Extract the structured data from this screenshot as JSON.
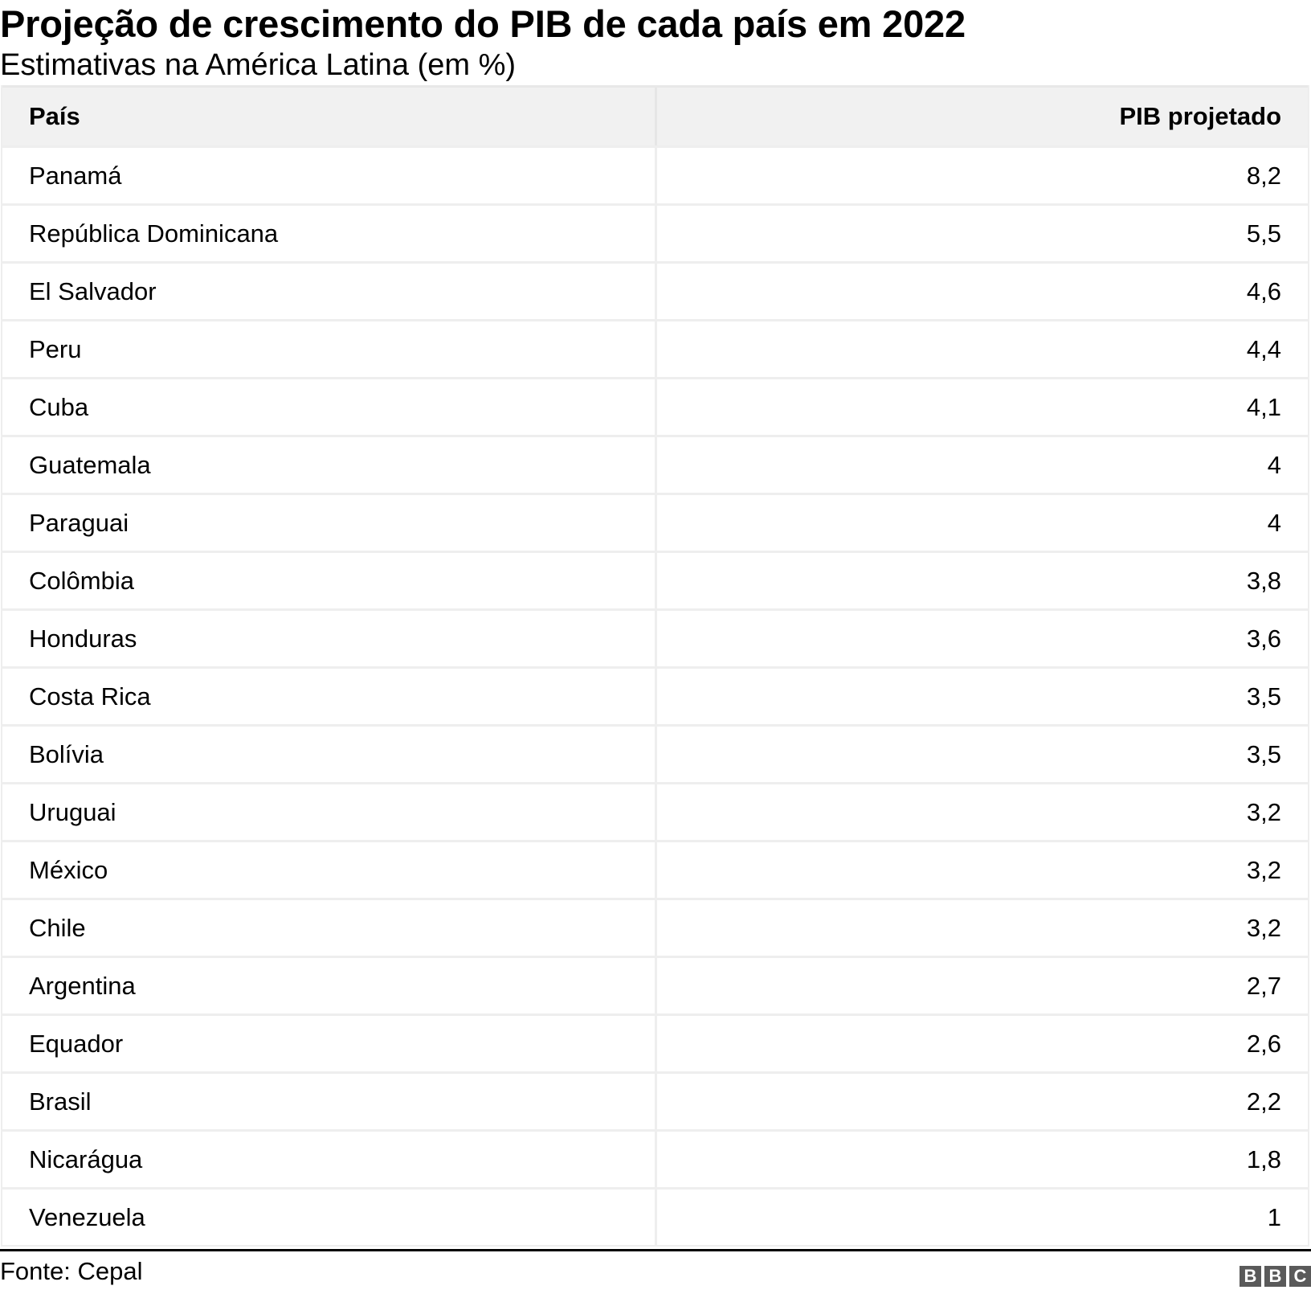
{
  "header": {
    "title": "Projeção de crescimento do PIB de cada país em 2022",
    "subtitle": "Estimativas na América Latina (em %)"
  },
  "table": {
    "columns": [
      "País",
      "PIB projetado"
    ],
    "rows": [
      {
        "country": "Panamá",
        "value": "8,2"
      },
      {
        "country": "República Dominicana",
        "value": "5,5"
      },
      {
        "country": "El Salvador",
        "value": "4,6"
      },
      {
        "country": "Peru",
        "value": "4,4"
      },
      {
        "country": "Cuba",
        "value": "4,1"
      },
      {
        "country": "Guatemala",
        "value": "4"
      },
      {
        "country": "Paraguai",
        "value": "4"
      },
      {
        "country": "Colômbia",
        "value": "3,8"
      },
      {
        "country": "Honduras",
        "value": "3,6"
      },
      {
        "country": "Costa Rica",
        "value": "3,5"
      },
      {
        "country": "Bolívia",
        "value": "3,5"
      },
      {
        "country": "Uruguai",
        "value": "3,2"
      },
      {
        "country": "México",
        "value": "3,2"
      },
      {
        "country": "Chile",
        "value": "3,2"
      },
      {
        "country": "Argentina",
        "value": "2,7"
      },
      {
        "country": "Equador",
        "value": "2,6"
      },
      {
        "country": "Brasil",
        "value": "2,2"
      },
      {
        "country": "Nicarágua",
        "value": "1,8"
      },
      {
        "country": "Venezuela",
        "value": "1"
      }
    ]
  },
  "footer": {
    "source": "Fonte: Cepal",
    "logo": [
      "B",
      "B",
      "C"
    ]
  },
  "colors": {
    "header_bg": "#f1f1f1",
    "grid_line": "#eeeeee",
    "footer_rule": "#000000",
    "logo_block": "#5a5a5a"
  }
}
